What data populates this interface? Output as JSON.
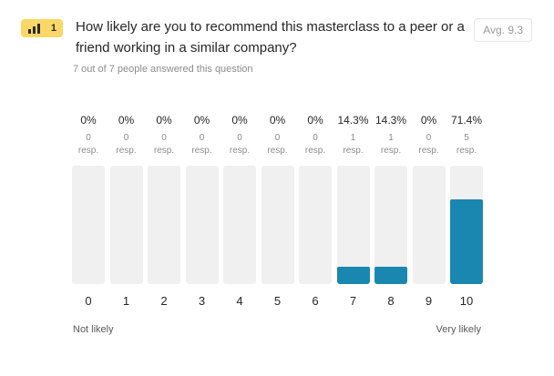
{
  "badge": {
    "number": "1",
    "icon": "bar-chart-icon",
    "color": "#fbd768"
  },
  "question": "How likely are you to recommend this masterclass to a peer or a friend working in a similar company?",
  "average": "Avg. 9.3",
  "answered": "7 out of 7 people answered this question",
  "scale": {
    "left": "Not likely",
    "right": "Very likely"
  },
  "accent": "#1a87b0",
  "resp_word": "resp.",
  "options": [
    {
      "label": "0",
      "percent": "0%",
      "count": "0",
      "fraction": 0
    },
    {
      "label": "1",
      "percent": "0%",
      "count": "0",
      "fraction": 0
    },
    {
      "label": "2",
      "percent": "0%",
      "count": "0",
      "fraction": 0
    },
    {
      "label": "3",
      "percent": "0%",
      "count": "0",
      "fraction": 0
    },
    {
      "label": "4",
      "percent": "0%",
      "count": "0",
      "fraction": 0
    },
    {
      "label": "5",
      "percent": "0%",
      "count": "0",
      "fraction": 0
    },
    {
      "label": "6",
      "percent": "0%",
      "count": "0",
      "fraction": 0
    },
    {
      "label": "7",
      "percent": "14.3%",
      "count": "1",
      "fraction": 0.143
    },
    {
      "label": "8",
      "percent": "14.3%",
      "count": "1",
      "fraction": 0.143
    },
    {
      "label": "9",
      "percent": "0%",
      "count": "0",
      "fraction": 0
    },
    {
      "label": "10",
      "percent": "71.4%",
      "count": "5",
      "fraction": 0.714
    }
  ]
}
